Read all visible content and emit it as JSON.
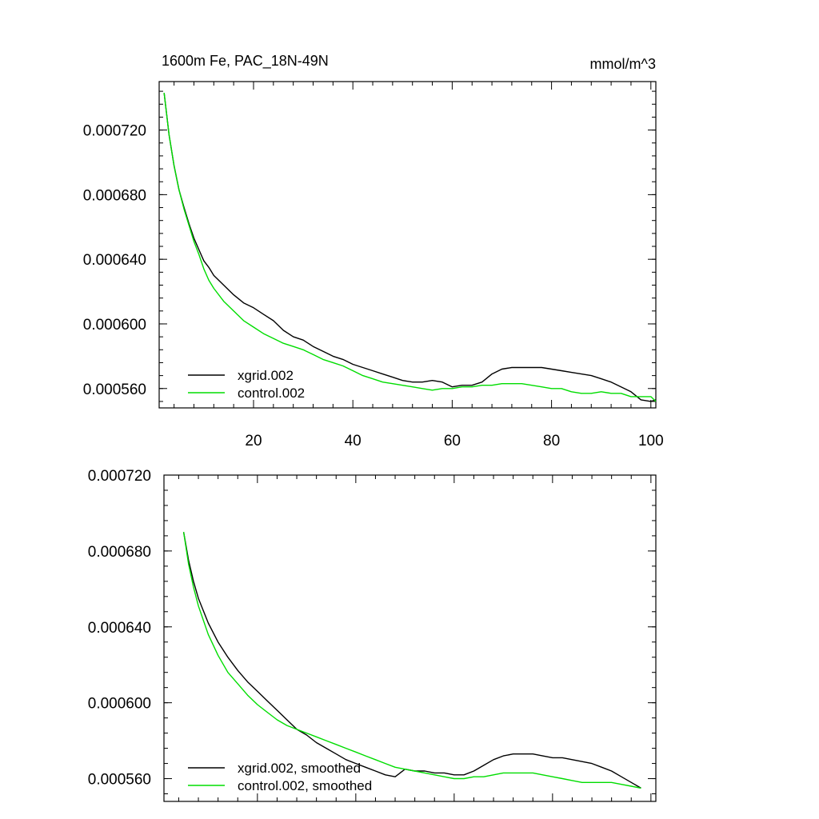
{
  "chart_data": [
    {
      "type": "line",
      "title": "1600m Fe, PAC_18N-49N",
      "units": "mmol/m^3",
      "xlim": [
        1,
        101
      ],
      "ylim": [
        0.000548,
        0.00075
      ],
      "xticks": [
        20,
        40,
        60,
        80,
        100
      ],
      "xtick_labels": [
        "20",
        "40",
        "60",
        "80",
        "100"
      ],
      "yticks": [
        0.00072,
        0.00068,
        0.00064,
        0.0006,
        0.00056
      ],
      "ytick_labels": [
        "0.000720",
        "0.000680",
        "0.000640",
        "0.000600",
        "0.000560"
      ],
      "legend_position": "bottom-left",
      "series": [
        {
          "name": "xgrid.002",
          "color": "#000000",
          "x": [
            2,
            3,
            4,
            5,
            6,
            7,
            8,
            9,
            10,
            11,
            12,
            14,
            16,
            18,
            20,
            22,
            24,
            26,
            28,
            30,
            32,
            34,
            36,
            38,
            40,
            42,
            44,
            46,
            48,
            50,
            52,
            54,
            56,
            58,
            60,
            62,
            64,
            66,
            68,
            70,
            72,
            74,
            76,
            78,
            80,
            82,
            84,
            86,
            88,
            90,
            92,
            94,
            96,
            98,
            100,
            101
          ],
          "y": [
            0.000743,
            0.000717,
            0.000698,
            0.000683,
            0.000672,
            0.000662,
            0.000653,
            0.000646,
            0.000639,
            0.000635,
            0.00063,
            0.000624,
            0.000618,
            0.000613,
            0.00061,
            0.000606,
            0.000602,
            0.000596,
            0.000592,
            0.00059,
            0.000586,
            0.000583,
            0.00058,
            0.000578,
            0.000575,
            0.000573,
            0.000571,
            0.000569,
            0.000567,
            0.000565,
            0.000564,
            0.000564,
            0.000565,
            0.000564,
            0.000561,
            0.000562,
            0.000562,
            0.000564,
            0.000569,
            0.000572,
            0.000573,
            0.000573,
            0.000573,
            0.000573,
            0.000572,
            0.000571,
            0.00057,
            0.000569,
            0.000568,
            0.000566,
            0.000564,
            0.000561,
            0.000558,
            0.000553,
            0.000552,
            0.000553
          ]
        },
        {
          "name": "control.002",
          "color": "#00dd00",
          "x": [
            2,
            3,
            4,
            5,
            6,
            7,
            8,
            9,
            10,
            11,
            12,
            14,
            16,
            18,
            20,
            22,
            24,
            26,
            28,
            30,
            32,
            34,
            36,
            38,
            40,
            42,
            44,
            46,
            48,
            50,
            52,
            54,
            56,
            58,
            60,
            62,
            64,
            66,
            68,
            70,
            72,
            74,
            76,
            78,
            80,
            82,
            84,
            86,
            88,
            90,
            92,
            94,
            96,
            98,
            100,
            101
          ],
          "y": [
            0.000743,
            0.000717,
            0.000698,
            0.000683,
            0.000671,
            0.000661,
            0.000651,
            0.000643,
            0.000634,
            0.000627,
            0.000622,
            0.000614,
            0.000608,
            0.000602,
            0.000598,
            0.000594,
            0.000591,
            0.000588,
            0.000586,
            0.000584,
            0.000581,
            0.000578,
            0.000576,
            0.000574,
            0.000571,
            0.000568,
            0.000566,
            0.000564,
            0.000563,
            0.000562,
            0.000561,
            0.00056,
            0.000559,
            0.00056,
            0.00056,
            0.000561,
            0.000561,
            0.000562,
            0.000562,
            0.000563,
            0.000563,
            0.000563,
            0.000562,
            0.000561,
            0.00056,
            0.00056,
            0.000558,
            0.000557,
            0.000557,
            0.000558,
            0.000557,
            0.000557,
            0.000555,
            0.000555,
            0.000555,
            0.000552
          ]
        }
      ]
    },
    {
      "type": "line",
      "title": "",
      "xlim": [
        1,
        101
      ],
      "ylim": [
        0.000548,
        0.00072
      ],
      "xticks": [
        20,
        40,
        60,
        80,
        100
      ],
      "xtick_labels": [],
      "yticks": [
        0.00072,
        0.00068,
        0.00064,
        0.0006,
        0.00056
      ],
      "ytick_labels": [
        "0.000720",
        "0.000680",
        "0.000640",
        "0.000600",
        "0.000560"
      ],
      "legend_position": "bottom-left",
      "series": [
        {
          "name": "xgrid.002, smoothed",
          "color": "#000000",
          "x": [
            5,
            6,
            7,
            8,
            10,
            12,
            14,
            16,
            18,
            20,
            22,
            24,
            26,
            28,
            30,
            32,
            34,
            36,
            38,
            40,
            42,
            44,
            46,
            48,
            50,
            52,
            54,
            56,
            58,
            60,
            62,
            64,
            66,
            68,
            70,
            72,
            74,
            76,
            78,
            80,
            82,
            84,
            86,
            88,
            90,
            92,
            94,
            96,
            98
          ],
          "y": [
            0.00069,
            0.000675,
            0.000664,
            0.000655,
            0.000642,
            0.000632,
            0.000624,
            0.000617,
            0.000611,
            0.000606,
            0.000601,
            0.000596,
            0.000591,
            0.000586,
            0.000583,
            0.000579,
            0.000576,
            0.000573,
            0.00057,
            0.000568,
            0.000566,
            0.000564,
            0.000562,
            0.000561,
            0.000565,
            0.000564,
            0.000564,
            0.000563,
            0.000563,
            0.000562,
            0.000562,
            0.000564,
            0.000567,
            0.00057,
            0.000572,
            0.000573,
            0.000573,
            0.000573,
            0.000572,
            0.000571,
            0.000571,
            0.00057,
            0.000569,
            0.000568,
            0.000566,
            0.000564,
            0.000561,
            0.000558,
            0.000555
          ]
        },
        {
          "name": "control.002, smoothed",
          "color": "#00dd00",
          "x": [
            5,
            6,
            7,
            8,
            10,
            12,
            14,
            16,
            18,
            20,
            22,
            24,
            26,
            28,
            30,
            32,
            34,
            36,
            38,
            40,
            42,
            44,
            46,
            48,
            50,
            52,
            54,
            56,
            58,
            60,
            62,
            64,
            66,
            68,
            70,
            72,
            74,
            76,
            78,
            80,
            82,
            84,
            86,
            88,
            90,
            92,
            94,
            96,
            98
          ],
          "y": [
            0.00069,
            0.000673,
            0.000661,
            0.000651,
            0.000636,
            0.000625,
            0.000616,
            0.00061,
            0.000604,
            0.000599,
            0.000595,
            0.000591,
            0.000588,
            0.000586,
            0.000584,
            0.000582,
            0.00058,
            0.000578,
            0.000576,
            0.000574,
            0.000572,
            0.00057,
            0.000568,
            0.000566,
            0.000565,
            0.000564,
            0.000563,
            0.000562,
            0.000561,
            0.00056,
            0.00056,
            0.000561,
            0.000561,
            0.000562,
            0.000563,
            0.000563,
            0.000563,
            0.000563,
            0.000562,
            0.000561,
            0.00056,
            0.000559,
            0.000558,
            0.000558,
            0.000558,
            0.000558,
            0.000557,
            0.000556,
            0.000555
          ]
        }
      ]
    }
  ]
}
